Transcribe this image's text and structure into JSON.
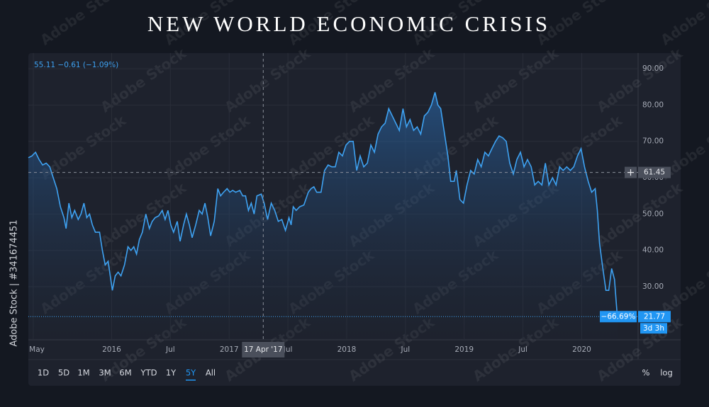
{
  "chart_data": {
    "type": "area-line",
    "title": "NEW WORLD ECONOMIC CRISIS",
    "header_text": "55.11 −0.61 (−1.09%)",
    "color": "#3ea2f2",
    "grid": true,
    "xlim": [
      2015.291,
      2020.48
    ],
    "ylim": [
      15.4,
      94.3
    ],
    "xticks": [
      {
        "value": 2015.333,
        "label": "May"
      },
      2016,
      {
        "value": 2016.5,
        "label": "Jul"
      },
      2017,
      {
        "value": 2017.5,
        "label": "Jul"
      },
      2018,
      {
        "value": 2018.5,
        "label": "Jul"
      },
      2019,
      {
        "value": 2019.5,
        "label": "Jul"
      },
      2020
    ],
    "yticks": [
      {
        "value": 30,
        "label": "30.00"
      },
      {
        "value": 40,
        "label": "40.00"
      },
      {
        "value": 50,
        "label": "50.00"
      },
      {
        "value": 60,
        "label": "60.00"
      },
      {
        "value": 70,
        "label": "70.00"
      },
      {
        "value": 80,
        "label": "80.00"
      },
      {
        "value": 90,
        "label": "90.00"
      }
    ],
    "x": [
      2015.291,
      2015.321,
      2015.352,
      2015.382,
      2015.412,
      2015.443,
      2015.473,
      2015.503,
      2015.533,
      2015.564,
      2015.594,
      2015.612,
      2015.636,
      2015.661,
      2015.685,
      2015.715,
      2015.739,
      2015.764,
      2015.788,
      2015.812,
      2015.836,
      2015.861,
      2015.897,
      2015.921,
      2015.945,
      2015.97,
      2015.988,
      2016.006,
      2016.03,
      2016.055,
      2016.079,
      2016.109,
      2016.139,
      2016.164,
      2016.188,
      2016.212,
      2016.236,
      2016.261,
      2016.291,
      2016.321,
      2016.345,
      2016.37,
      2016.4,
      2016.43,
      2016.455,
      2016.479,
      2016.503,
      2016.527,
      2016.558,
      2016.582,
      2016.612,
      2016.636,
      2016.661,
      2016.685,
      2016.715,
      2016.745,
      2016.77,
      2016.794,
      2016.818,
      2016.842,
      2016.873,
      2016.903,
      2016.927,
      2016.952,
      2016.982,
      2017.006,
      2017.03,
      2017.055,
      2017.091,
      2017.115,
      2017.139,
      2017.164,
      2017.188,
      2017.212,
      2017.236,
      2017.273,
      2017.297,
      2017.327,
      2017.358,
      2017.388,
      2017.418,
      2017.448,
      2017.479,
      2017.509,
      2017.527,
      2017.545,
      2017.57,
      2017.6,
      2017.636,
      2017.673,
      2017.697,
      2017.721,
      2017.745,
      2017.782,
      2017.812,
      2017.842,
      2017.873,
      2017.903,
      2017.933,
      2017.964,
      2017.994,
      2018.024,
      2018.055,
      2018.085,
      2018.115,
      2018.145,
      2018.176,
      2018.206,
      2018.236,
      2018.267,
      2018.297,
      2018.327,
      2018.358,
      2018.388,
      2018.418,
      2018.448,
      2018.479,
      2018.509,
      2018.539,
      2018.57,
      2018.6,
      2018.63,
      2018.661,
      2018.691,
      2018.721,
      2018.752,
      2018.776,
      2018.8,
      2018.824,
      2018.861,
      2018.885,
      2018.915,
      2018.933,
      2018.964,
      2018.994,
      2019.024,
      2019.055,
      2019.085,
      2019.115,
      2019.145,
      2019.176,
      2019.206,
      2019.236,
      2019.267,
      2019.297,
      2019.327,
      2019.358,
      2019.388,
      2019.418,
      2019.448,
      2019.479,
      2019.509,
      2019.539,
      2019.57,
      2019.6,
      2019.63,
      2019.661,
      2019.691,
      2019.721,
      2019.752,
      2019.782,
      2019.812,
      2019.842,
      2019.873,
      2019.903,
      2019.933,
      2019.964,
      2019.994,
      2020.024,
      2020.055,
      2020.085,
      2020.115,
      2020.133,
      2020.152,
      2020.176,
      2020.206,
      2020.23,
      2020.255,
      2020.279,
      2020.303
    ],
    "values": [
      65.5,
      66,
      67,
      65,
      63.5,
      64,
      63,
      60,
      57,
      52,
      49,
      46,
      53,
      49,
      51,
      48.5,
      50,
      53,
      49,
      50,
      47,
      45,
      45,
      40,
      36,
      37,
      33,
      29,
      33,
      34,
      33,
      36,
      41,
      40,
      41,
      39,
      43,
      45,
      50,
      46,
      48,
      49,
      49.5,
      51,
      48.5,
      51,
      47,
      45,
      48,
      42.5,
      47,
      50,
      47,
      43.5,
      47,
      51,
      50,
      53,
      49,
      44,
      48,
      57,
      55,
      56,
      57,
      56,
      56.5,
      56,
      56.5,
      55,
      55,
      51,
      53,
      50,
      55,
      55.5,
      53,
      48.5,
      53,
      51,
      48,
      48.5,
      45.5,
      49,
      47,
      52,
      51,
      52,
      52.5,
      56,
      57,
      57.5,
      56,
      56,
      62,
      63.5,
      63,
      63,
      67,
      66,
      69,
      70,
      70,
      62,
      66,
      63,
      64,
      69,
      67,
      72,
      74,
      75,
      79,
      77,
      75,
      73,
      79,
      74,
      76,
      73,
      74,
      72,
      77,
      78,
      80,
      83.5,
      80,
      79,
      74,
      66,
      59,
      59,
      62,
      54,
      53,
      58,
      62,
      61,
      65,
      63,
      67,
      66,
      68,
      70,
      71.5,
      71,
      70,
      64,
      61,
      65,
      67,
      63,
      65,
      63,
      58,
      59,
      58,
      64,
      58,
      60,
      58,
      63,
      62,
      63,
      62,
      63,
      66,
      68,
      63,
      59,
      56,
      57,
      51,
      42,
      36,
      29,
      29,
      35,
      32,
      21.77
    ],
    "crosshair": {
      "x": 2017.29,
      "x_label": "17 Apr '17",
      "y": 61.45
    },
    "last": {
      "value": 21.77,
      "change": -66.69,
      "change_label": "−66.69%",
      "countdown": "3d 3h"
    },
    "range_buttons": [
      "1D",
      "5D",
      "1M",
      "3M",
      "6M",
      "YTD",
      "1Y",
      "5Y",
      "All"
    ],
    "active_range_index": 7,
    "scale_buttons": [
      "%",
      "log"
    ],
    "watermark": "Adobe Stock",
    "side_text": "Adobe Stock | #341674451"
  }
}
